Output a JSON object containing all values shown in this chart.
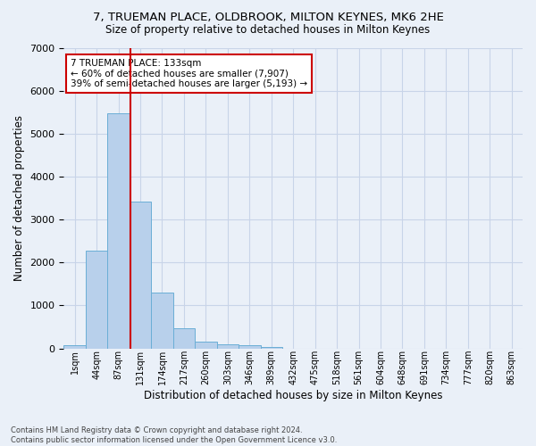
{
  "title": "7, TRUEMAN PLACE, OLDBROOK, MILTON KEYNES, MK6 2HE",
  "subtitle": "Size of property relative to detached houses in Milton Keynes",
  "xlabel": "Distribution of detached houses by size in Milton Keynes",
  "ylabel": "Number of detached properties",
  "footer_line1": "Contains HM Land Registry data © Crown copyright and database right 2024.",
  "footer_line2": "Contains public sector information licensed under the Open Government Licence v3.0.",
  "bar_labels": [
    "1sqm",
    "44sqm",
    "87sqm",
    "131sqm",
    "174sqm",
    "217sqm",
    "260sqm",
    "303sqm",
    "346sqm",
    "389sqm",
    "432sqm",
    "475sqm",
    "518sqm",
    "561sqm",
    "604sqm",
    "648sqm",
    "691sqm",
    "734sqm",
    "777sqm",
    "820sqm",
    "863sqm"
  ],
  "bar_values": [
    70,
    2270,
    5480,
    3430,
    1310,
    470,
    155,
    90,
    65,
    40,
    0,
    0,
    0,
    0,
    0,
    0,
    0,
    0,
    0,
    0,
    0
  ],
  "bar_color": "#b8d0eb",
  "bar_edge_color": "#6aaed6",
  "grid_color": "#c8d4e8",
  "background_color": "#eaf0f8",
  "annotation_line1": "7 TRUEMAN PLACE: 133sqm",
  "annotation_line2": "← 60% of detached houses are smaller (7,907)",
  "annotation_line3": "39% of semi-detached houses are larger (5,193) →",
  "marker_color": "#cc0000",
  "annotation_box_color": "#ffffff",
  "annotation_box_edge": "#cc0000",
  "ylim": [
    0,
    7000
  ],
  "yticks": [
    0,
    1000,
    2000,
    3000,
    4000,
    5000,
    6000,
    7000
  ]
}
